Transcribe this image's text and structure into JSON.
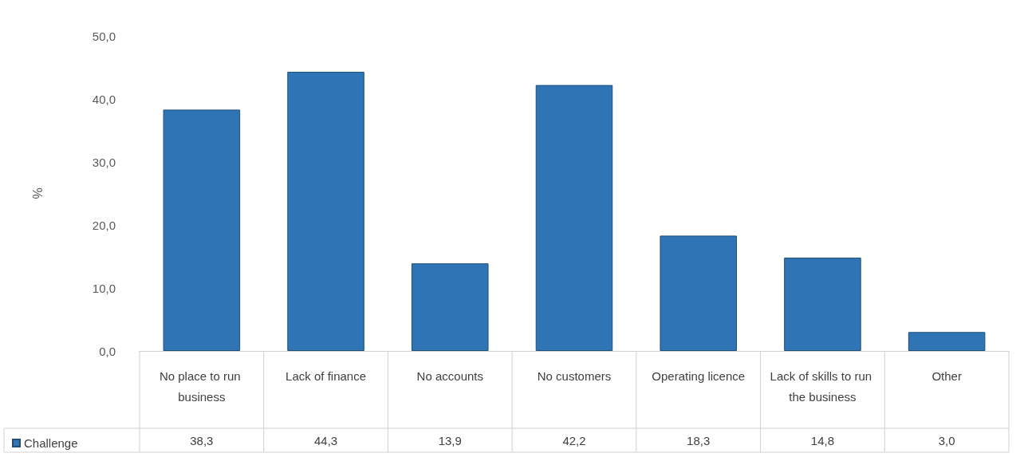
{
  "chart_data": {
    "type": "bar",
    "ylabel": "%",
    "categories": [
      "No place to run business",
      "Lack of finance",
      "No accounts",
      "No customers",
      "Operating licence",
      "Lack of skills to run the business",
      "Other"
    ],
    "series": [
      {
        "name": "Challenge",
        "color": "#2f75b5",
        "values": [
          38.3,
          44.3,
          13.9,
          42.2,
          18.3,
          14.8,
          3.0
        ],
        "value_labels": [
          "38,3",
          "44,3",
          "13,9",
          "42,2",
          "18,3",
          "14,8",
          "3,0"
        ]
      }
    ],
    "ylim": [
      0,
      50
    ],
    "yticks": [
      {
        "value": 0,
        "label": "0,0"
      },
      {
        "value": 10,
        "label": "10,0"
      },
      {
        "value": 20,
        "label": "20,0"
      },
      {
        "value": 30,
        "label": "30,0"
      },
      {
        "value": 40,
        "label": "40,0"
      },
      {
        "value": 50,
        "label": "50,0"
      }
    ],
    "grid": false,
    "legend": "bottom left"
  }
}
